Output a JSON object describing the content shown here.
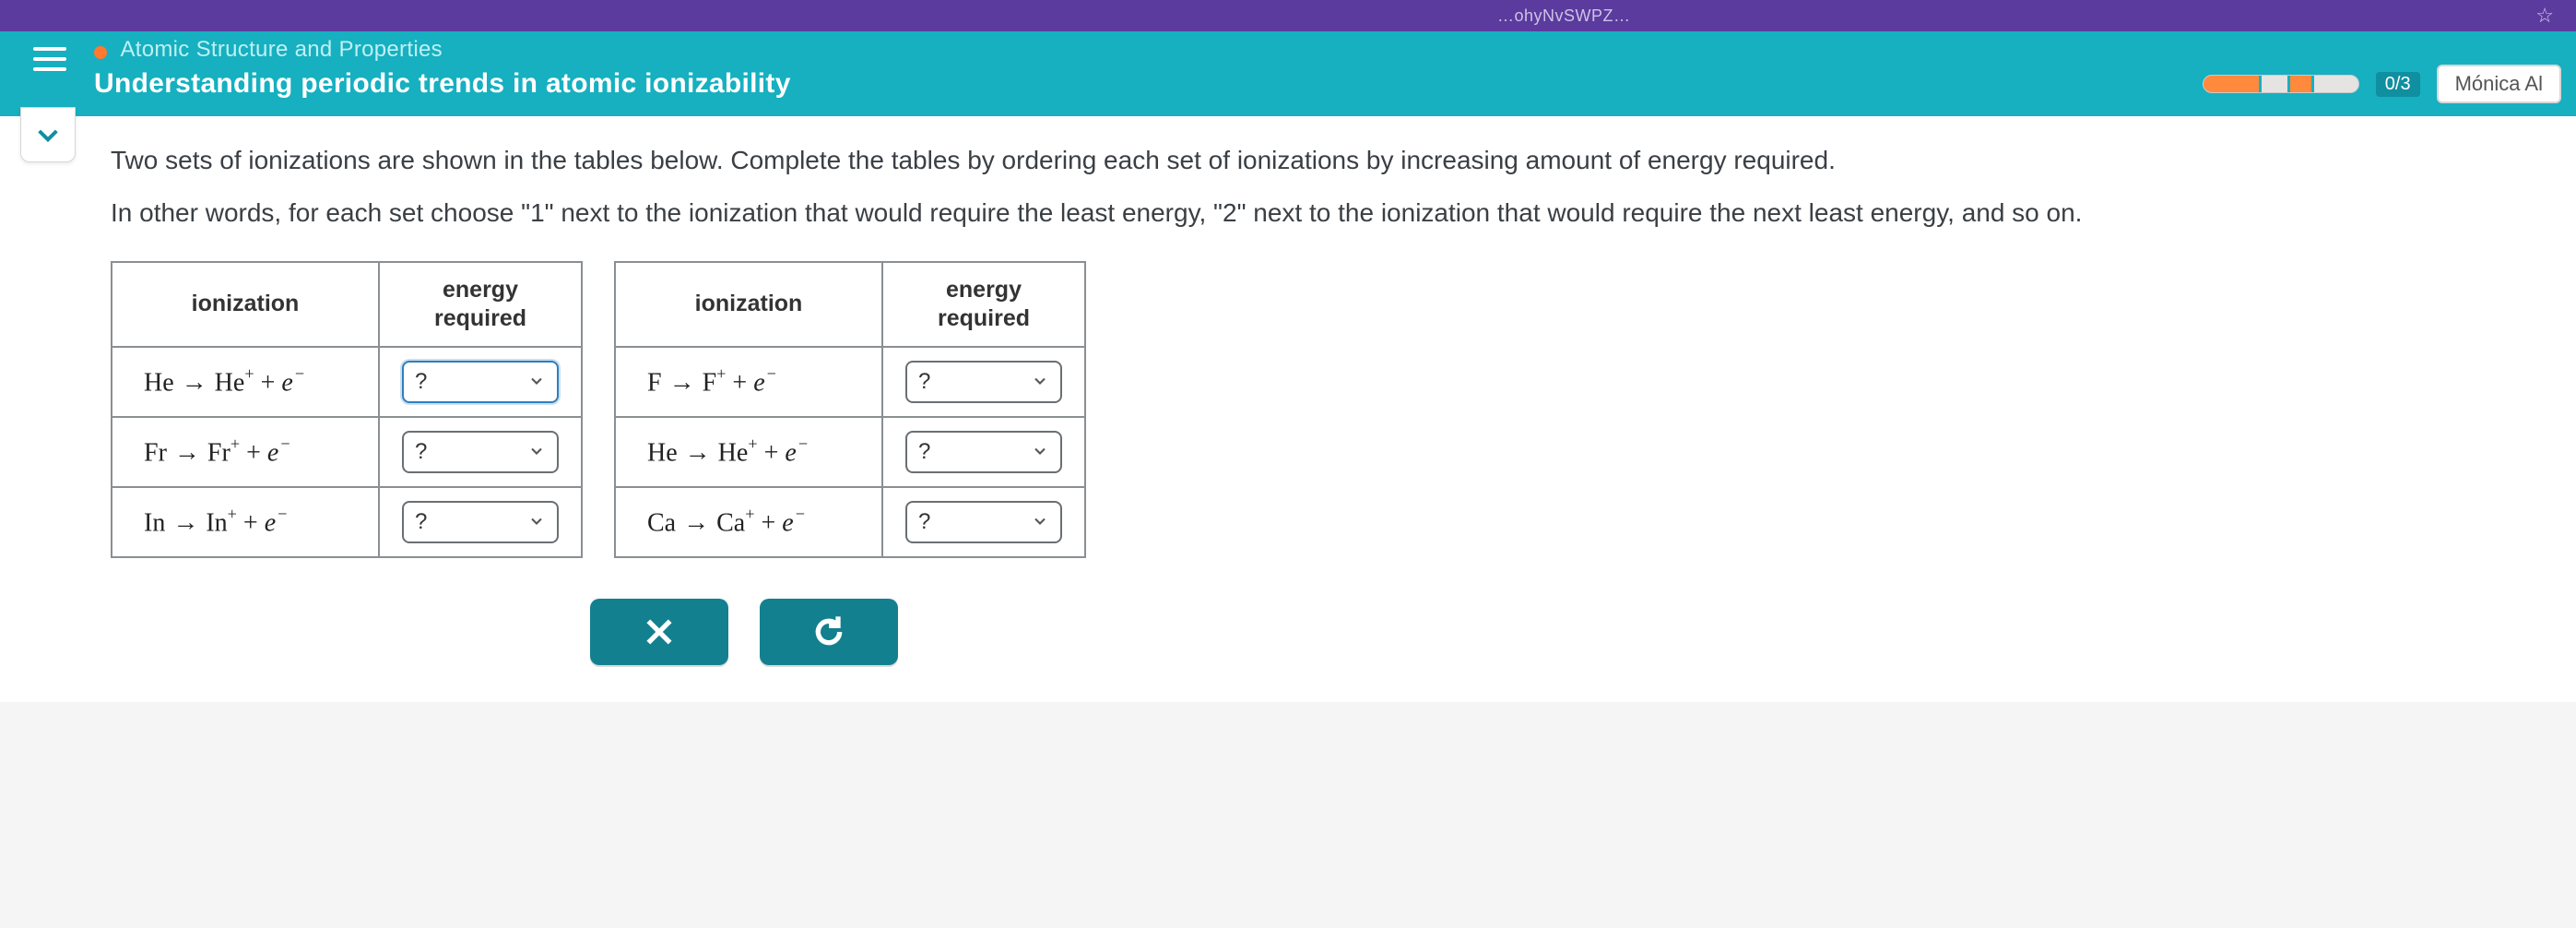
{
  "browser": {
    "url_fragment": "…ohyNvSWPZ…",
    "star_icon": "☆"
  },
  "header": {
    "breadcrumb": "Atomic Structure and Properties",
    "lesson_title": "Understanding periodic trends in atomic ionizability",
    "score": "0/3",
    "user": "Mónica Al",
    "progress": {
      "segments": [
        [
          0,
          36
        ],
        [
          54,
          70
        ]
      ],
      "ticks": [
        36,
        54,
        70
      ]
    }
  },
  "question": {
    "p1": "Two sets of ionizations are shown in the tables below. Complete the tables by ordering each set of ionizations by increasing amount of energy required.",
    "p2": "In other words, for each set choose \"1\" next to the ionization that would require the least energy, \"2\" next to the ionization that would require the next least energy, and so on."
  },
  "table_headers": {
    "ionization": "ionization",
    "energy": "energy\nrequired"
  },
  "select_placeholder": "?",
  "table1": {
    "rows": [
      {
        "el": "He",
        "ion": "He",
        "focused": true
      },
      {
        "el": "Fr",
        "ion": "Fr",
        "focused": false
      },
      {
        "el": "In",
        "ion": "In",
        "focused": false
      }
    ]
  },
  "table2": {
    "rows": [
      {
        "el": "F",
        "ion": "F",
        "focused": false
      },
      {
        "el": "He",
        "ion": "He",
        "focused": false
      },
      {
        "el": "Ca",
        "ion": "Ca",
        "focused": false
      }
    ]
  },
  "colors": {
    "teal": "#16b0c0",
    "teal_dark": "#12808f",
    "purple": "#5b3b9e",
    "orange": "#ff8a3d",
    "border": "#8a8f93"
  }
}
